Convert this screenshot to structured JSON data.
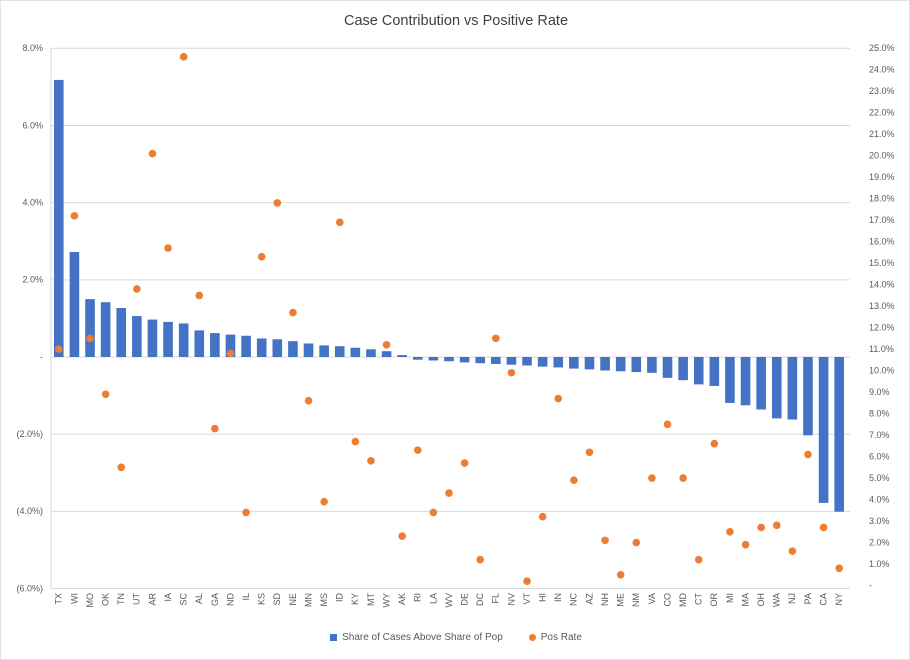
{
  "title": "Case Contribution vs Positive Rate",
  "colors": {
    "bar": "#4472C4",
    "dot": "#ED7D31",
    "gridline": "#D9D9D9",
    "axis_text": "#595959",
    "title_text": "#404040"
  },
  "chart_data": {
    "type": "combo",
    "title": "Case Contribution vs Positive Rate",
    "grid": "horizontal",
    "legend_position": "bottom",
    "categories": [
      "TX",
      "WI",
      "MO",
      "OK",
      "TN",
      "UT",
      "AR",
      "IA",
      "SC",
      "AL",
      "GA",
      "ND",
      "IL",
      "KS",
      "SD",
      "NE",
      "MN",
      "MS",
      "ID",
      "KY",
      "MT",
      "WY",
      "AK",
      "RI",
      "LA",
      "WV",
      "DE",
      "DC",
      "FL",
      "NV",
      "VT",
      "HI",
      "IN",
      "NC",
      "AZ",
      "NH",
      "ME",
      "NM",
      "VA",
      "CO",
      "MD",
      "CT",
      "OR",
      "MI",
      "MA",
      "OH",
      "WA",
      "NJ",
      "PA",
      "CA",
      "NY"
    ],
    "series": [
      {
        "name": "Share of Cases Above Share of Pop",
        "type": "bar",
        "axis": "left",
        "color": "#4472C4",
        "values": [
          7.18,
          2.72,
          1.5,
          1.42,
          1.27,
          1.06,
          0.97,
          0.91,
          0.87,
          0.69,
          0.62,
          0.58,
          0.55,
          0.48,
          0.46,
          0.41,
          0.35,
          0.3,
          0.28,
          0.24,
          0.2,
          0.15,
          0.05,
          -0.07,
          -0.09,
          -0.11,
          -0.14,
          -0.16,
          -0.18,
          -0.2,
          -0.22,
          -0.25,
          -0.27,
          -0.3,
          -0.32,
          -0.35,
          -0.37,
          -0.39,
          -0.41,
          -0.54,
          -0.6,
          -0.71,
          -0.75,
          -1.19,
          -1.25,
          -1.36,
          -1.59,
          -1.62,
          -2.03,
          -3.78,
          -4.01
        ]
      },
      {
        "name": "Pos Rate",
        "type": "scatter",
        "axis": "right",
        "color": "#ED7D31",
        "values": [
          11.0,
          17.2,
          11.5,
          8.9,
          5.5,
          13.8,
          20.1,
          15.7,
          24.6,
          13.5,
          7.3,
          10.8,
          3.4,
          15.3,
          17.8,
          12.7,
          8.6,
          3.9,
          16.9,
          6.7,
          5.8,
          11.2,
          2.3,
          6.3,
          3.4,
          4.3,
          5.7,
          1.2,
          11.5,
          9.9,
          0.2,
          3.2,
          8.7,
          4.9,
          6.2,
          2.1,
          0.5,
          2.0,
          5.0,
          7.5,
          5.0,
          1.2,
          6.6,
          2.5,
          1.9,
          2.7,
          2.8,
          1.6,
          6.1,
          2.7,
          0.8
        ]
      }
    ],
    "axis_left": {
      "min": -6,
      "max": 8,
      "tick_values": [
        8,
        6,
        4,
        2,
        0,
        -2,
        -4,
        -6
      ],
      "tick_labels": [
        "8.0%",
        "6.0%",
        "4.0%",
        "2.0%",
        "-",
        "(2.0%)",
        "(4.0%)",
        "(6.0%)"
      ]
    },
    "axis_right": {
      "min": 0,
      "max": 25,
      "tick_values": [
        25,
        24,
        23,
        22,
        21,
        20,
        19,
        18,
        17,
        16,
        15,
        14,
        13,
        12,
        11,
        10,
        9,
        8,
        7,
        6,
        5,
        4,
        3,
        2,
        1,
        0
      ],
      "tick_labels": [
        "25.0%",
        "24.0%",
        "23.0%",
        "22.0%",
        "21.0%",
        "20.0%",
        "19.0%",
        "18.0%",
        "17.0%",
        "16.0%",
        "15.0%",
        "14.0%",
        "13.0%",
        "12.0%",
        "11.0%",
        "10.0%",
        "9.0%",
        "8.0%",
        "7.0%",
        "6.0%",
        "5.0%",
        "4.0%",
        "3.0%",
        "2.0%",
        "1.0%",
        "-"
      ]
    }
  }
}
